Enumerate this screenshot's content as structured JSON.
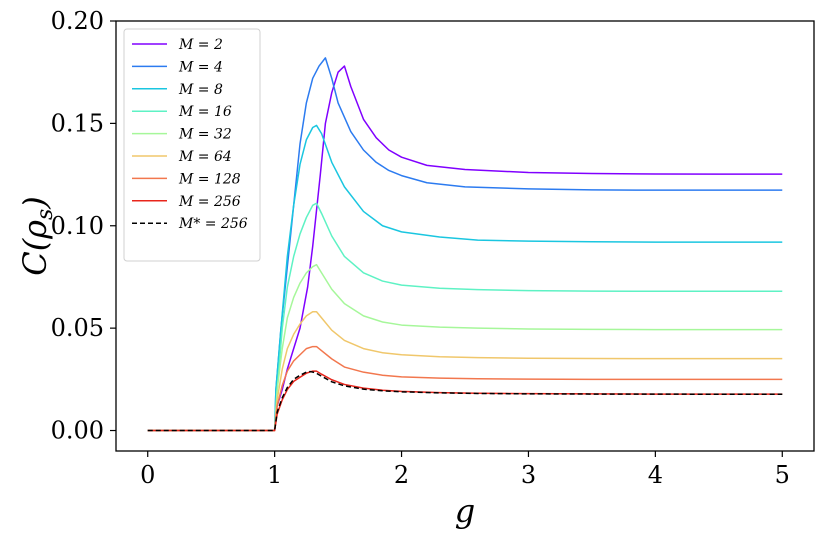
{
  "chart_data": {
    "type": "line",
    "xlabel": "g",
    "ylabel": "C(ρ_s)",
    "ylabel_parts": {
      "base": "C(ρ",
      "sub": "s",
      "close": ")"
    },
    "xlim": [
      -0.25,
      5.25
    ],
    "ylim": [
      -0.01,
      0.2
    ],
    "x_ticks": [
      0,
      1,
      2,
      3,
      4,
      5
    ],
    "x_tick_labels": [
      "0",
      "1",
      "2",
      "3",
      "4",
      "5"
    ],
    "y_ticks": [
      0.0,
      0.05,
      0.1,
      0.15,
      0.2
    ],
    "y_tick_labels": [
      "0.00",
      "0.05",
      "0.10",
      "0.15",
      "0.20"
    ],
    "grid": false,
    "legend_position": "top-left",
    "series": [
      {
        "name": "M = 2",
        "color": "#8000ff",
        "dashed": false,
        "x": [
          0,
          1.0,
          1.01,
          1.06,
          1.1,
          1.15,
          1.2,
          1.26,
          1.3,
          1.36,
          1.4,
          1.45,
          1.5,
          1.55,
          1.6,
          1.7,
          1.8,
          1.9,
          2.0,
          2.2,
          2.5,
          3.0,
          3.5,
          4.0,
          4.5,
          5.0
        ],
        "y": [
          0,
          0,
          0.01,
          0.02,
          0.03,
          0.04,
          0.05,
          0.07,
          0.09,
          0.125,
          0.15,
          0.165,
          0.175,
          0.178,
          0.168,
          0.152,
          0.143,
          0.137,
          0.1335,
          0.1295,
          0.1275,
          0.126,
          0.1255,
          0.1253,
          0.1252,
          0.1252
        ]
      },
      {
        "name": "M = 4",
        "color": "#2c7bf0",
        "dashed": false,
        "x": [
          0,
          1.0,
          1.01,
          1.05,
          1.1,
          1.15,
          1.2,
          1.25,
          1.3,
          1.35,
          1.4,
          1.45,
          1.5,
          1.6,
          1.7,
          1.8,
          1.9,
          2.0,
          2.2,
          2.5,
          3.0,
          3.5,
          4.0,
          4.5,
          5.0
        ],
        "y": [
          0,
          0,
          0.02,
          0.05,
          0.08,
          0.11,
          0.14,
          0.16,
          0.172,
          0.178,
          0.182,
          0.172,
          0.16,
          0.146,
          0.137,
          0.131,
          0.127,
          0.1245,
          0.121,
          0.119,
          0.118,
          0.1175,
          0.1174,
          0.1174,
          0.1174
        ]
      },
      {
        "name": "M = 8",
        "color": "#1ac6e0",
        "dashed": false,
        "x": [
          0,
          1.0,
          1.01,
          1.05,
          1.1,
          1.15,
          1.2,
          1.25,
          1.3,
          1.33,
          1.37,
          1.45,
          1.55,
          1.7,
          1.85,
          2.0,
          2.3,
          2.6,
          3.0,
          3.5,
          4.0,
          4.5,
          5.0
        ],
        "y": [
          0,
          0,
          0.02,
          0.05,
          0.085,
          0.11,
          0.13,
          0.142,
          0.148,
          0.149,
          0.145,
          0.131,
          0.119,
          0.107,
          0.1,
          0.097,
          0.0945,
          0.093,
          0.0925,
          0.0922,
          0.092,
          0.092,
          0.092
        ]
      },
      {
        "name": "M = 16",
        "color": "#5ef2c4",
        "dashed": false,
        "x": [
          0,
          1.0,
          1.02,
          1.06,
          1.1,
          1.15,
          1.2,
          1.25,
          1.3,
          1.33,
          1.37,
          1.45,
          1.55,
          1.7,
          1.85,
          2.0,
          2.3,
          2.6,
          3.0,
          3.5,
          4.0,
          4.5,
          5.0
        ],
        "y": [
          0,
          0,
          0.02,
          0.05,
          0.07,
          0.085,
          0.096,
          0.104,
          0.11,
          0.111,
          0.106,
          0.095,
          0.085,
          0.077,
          0.073,
          0.071,
          0.0695,
          0.0688,
          0.0683,
          0.0681,
          0.068,
          0.068,
          0.068
        ]
      },
      {
        "name": "M = 32",
        "color": "#a6f79a",
        "dashed": false,
        "x": [
          0,
          1.0,
          1.02,
          1.06,
          1.1,
          1.15,
          1.2,
          1.25,
          1.3,
          1.33,
          1.37,
          1.45,
          1.55,
          1.7,
          1.85,
          2.0,
          2.3,
          2.6,
          3.0,
          3.5,
          4.0,
          4.5,
          5.0
        ],
        "y": [
          0,
          0,
          0.02,
          0.04,
          0.055,
          0.065,
          0.072,
          0.077,
          0.08,
          0.081,
          0.077,
          0.069,
          0.062,
          0.056,
          0.053,
          0.0515,
          0.0505,
          0.05,
          0.0496,
          0.0494,
          0.0493,
          0.0493,
          0.0493
        ]
      },
      {
        "name": "M = 64",
        "color": "#f0c76b",
        "dashed": false,
        "x": [
          0,
          1.0,
          1.02,
          1.06,
          1.1,
          1.15,
          1.2,
          1.25,
          1.3,
          1.33,
          1.37,
          1.45,
          1.55,
          1.7,
          1.85,
          2.0,
          2.3,
          2.6,
          3.0,
          3.5,
          4.0,
          4.5,
          5.0
        ],
        "y": [
          0,
          0,
          0.015,
          0.03,
          0.04,
          0.047,
          0.052,
          0.056,
          0.058,
          0.058,
          0.055,
          0.049,
          0.044,
          0.04,
          0.038,
          0.037,
          0.036,
          0.0356,
          0.0353,
          0.0352,
          0.0351,
          0.0351,
          0.0351
        ]
      },
      {
        "name": "M = 128",
        "color": "#f2774e",
        "dashed": false,
        "x": [
          0,
          1.0,
          1.02,
          1.06,
          1.1,
          1.15,
          1.2,
          1.25,
          1.3,
          1.33,
          1.37,
          1.45,
          1.55,
          1.7,
          1.85,
          2.0,
          2.3,
          2.6,
          3.0,
          3.5,
          4.0,
          4.5,
          5.0
        ],
        "y": [
          0,
          0,
          0.012,
          0.022,
          0.029,
          0.034,
          0.037,
          0.04,
          0.041,
          0.041,
          0.039,
          0.035,
          0.031,
          0.0285,
          0.027,
          0.0262,
          0.0256,
          0.0253,
          0.0251,
          0.025,
          0.025,
          0.025,
          0.025
        ]
      },
      {
        "name": "M = 256",
        "color": "#e8251b",
        "dashed": false,
        "x": [
          0,
          1.0,
          1.02,
          1.06,
          1.1,
          1.15,
          1.2,
          1.25,
          1.3,
          1.33,
          1.37,
          1.45,
          1.55,
          1.7,
          1.85,
          2.0,
          2.3,
          2.6,
          3.0,
          3.5,
          4.0,
          4.5,
          5.0
        ],
        "y": [
          0,
          0,
          0.008,
          0.015,
          0.02,
          0.024,
          0.026,
          0.028,
          0.029,
          0.029,
          0.0275,
          0.0248,
          0.0225,
          0.0207,
          0.0197,
          0.0191,
          0.0185,
          0.0182,
          0.018,
          0.0179,
          0.0178,
          0.0178,
          0.0178
        ]
      },
      {
        "name": "M* = 256",
        "color": "#000000",
        "dashed": true,
        "x": [
          0,
          1.0,
          1.02,
          1.06,
          1.1,
          1.15,
          1.2,
          1.25,
          1.28,
          1.32,
          1.37,
          1.45,
          1.55,
          1.7,
          1.85,
          2.0,
          2.3,
          2.6,
          3.0,
          3.5,
          4.0,
          4.5,
          5.0
        ],
        "y": [
          0,
          0,
          0.009,
          0.016,
          0.021,
          0.025,
          0.027,
          0.0285,
          0.0288,
          0.0283,
          0.0265,
          0.0238,
          0.0218,
          0.0202,
          0.0194,
          0.0189,
          0.0184,
          0.0181,
          0.0179,
          0.0178,
          0.0178,
          0.0177,
          0.0177
        ]
      }
    ]
  }
}
